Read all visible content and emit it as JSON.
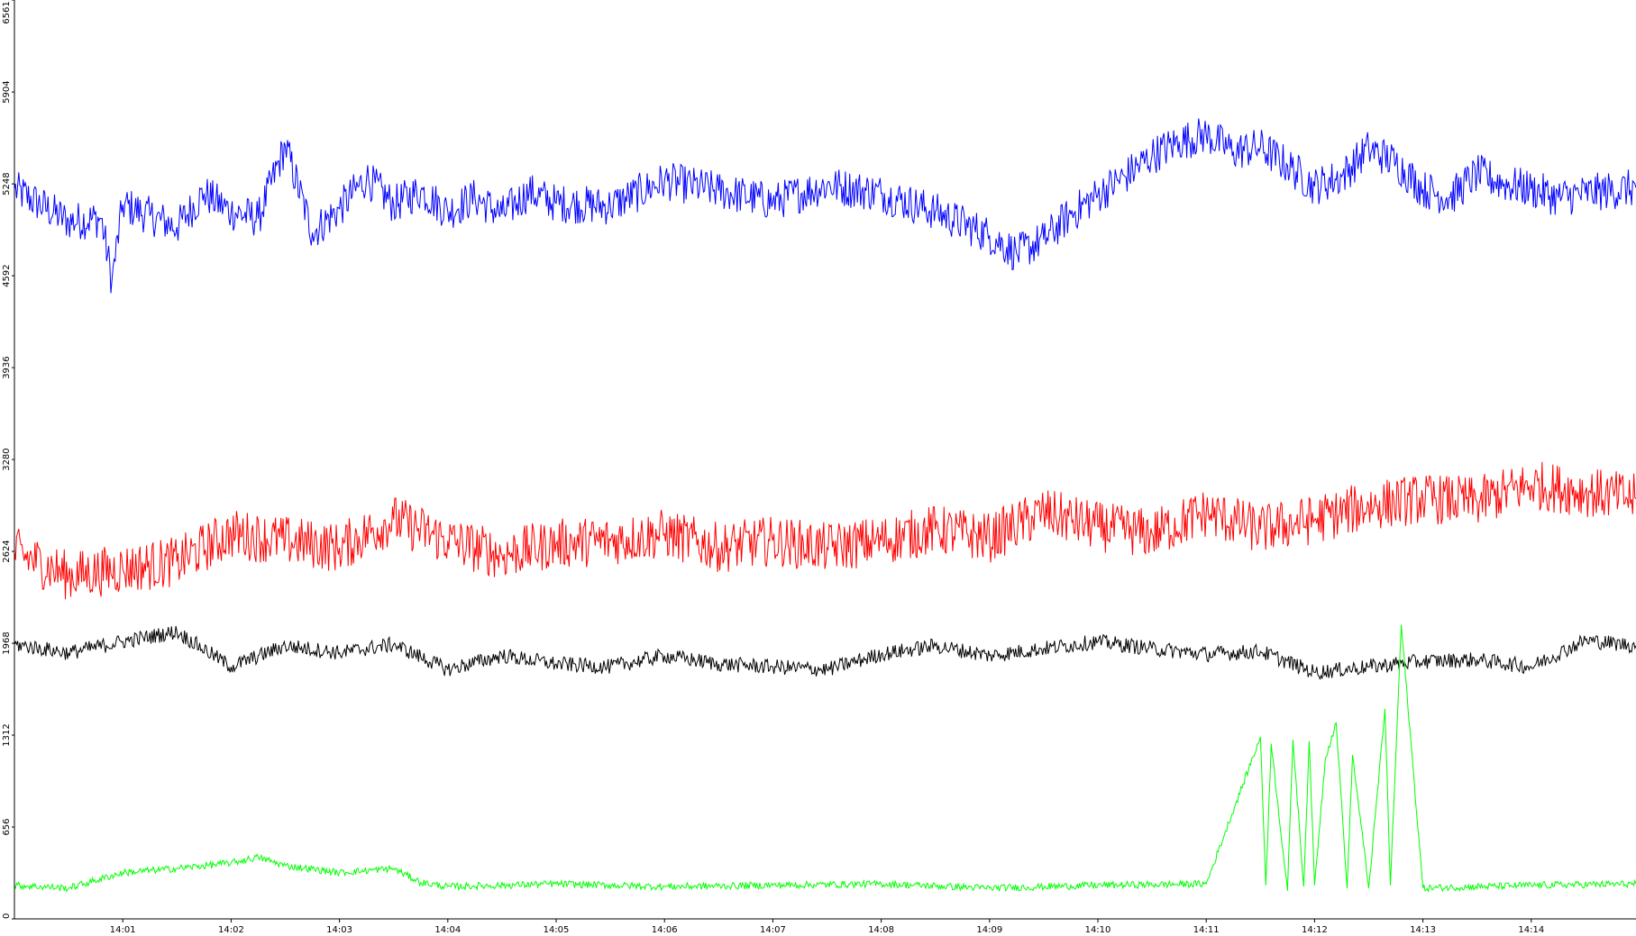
{
  "chart_data": {
    "type": "line",
    "title": "",
    "xlabel": "",
    "ylabel": "",
    "grid": false,
    "legend": "none",
    "x_range": [
      "14:00:00",
      "14:14:58"
    ],
    "ylim": [
      0,
      6561
    ],
    "y_ticks": [
      "0",
      "656",
      "1312",
      "1968",
      "2624",
      "3280",
      "3936",
      "4592",
      "5248",
      "5904",
      "6561"
    ],
    "x_ticks": [
      "14:01",
      "14:02",
      "14:03",
      "14:04",
      "14:05",
      "14:06",
      "14:07",
      "14:08",
      "14:09",
      "14:10",
      "14:11",
      "14:12",
      "14:13",
      "14:14"
    ],
    "series": [
      {
        "color": "#0000ff",
        "x": [
          "14:00:00",
          "14:00:30",
          "14:00:48",
          "14:00:54",
          "14:01:00",
          "14:01:15",
          "14:01:30",
          "14:01:45",
          "14:02:00",
          "14:02:15",
          "14:02:30",
          "14:02:45",
          "14:03:00",
          "14:03:15",
          "14:03:30",
          "14:03:45",
          "14:04:00",
          "14:04:15",
          "14:04:30",
          "14:04:45",
          "14:05:00",
          "14:05:30",
          "14:06:00",
          "14:06:30",
          "14:07:00",
          "14:07:30",
          "14:08:00",
          "14:08:30",
          "14:09:00",
          "14:09:15",
          "14:09:30",
          "14:09:45",
          "14:10:00",
          "14:10:15",
          "14:10:30",
          "14:10:45",
          "14:11:00",
          "14:11:15",
          "14:11:30",
          "14:11:45",
          "14:12:00",
          "14:12:15",
          "14:12:30",
          "14:12:45",
          "14:13:00",
          "14:13:15",
          "14:13:30",
          "14:13:45",
          "14:14:00",
          "14:14:15",
          "14:14:30",
          "14:14:58"
        ],
        "values": [
          5210,
          4980,
          5000,
          4560,
          5100,
          5020,
          4940,
          5180,
          5050,
          5000,
          5520,
          4900,
          5070,
          5290,
          5100,
          5200,
          5050,
          5150,
          5030,
          5190,
          5110,
          5090,
          5270,
          5200,
          5120,
          5240,
          5180,
          5050,
          4880,
          4750,
          4850,
          5030,
          5170,
          5300,
          5450,
          5550,
          5600,
          5480,
          5510,
          5380,
          5230,
          5300,
          5500,
          5400,
          5210,
          5150,
          5320,
          5250,
          5210,
          5150,
          5180,
          5220
        ]
      },
      {
        "color": "#ff0000",
        "x": [
          "14:00:00",
          "14:00:30",
          "14:01:00",
          "14:01:30",
          "14:02:00",
          "14:02:30",
          "14:03:00",
          "14:03:30",
          "14:04:00",
          "14:04:30",
          "14:05:00",
          "14:05:30",
          "14:06:00",
          "14:06:30",
          "14:07:00",
          "14:07:30",
          "14:08:00",
          "14:08:30",
          "14:09:00",
          "14:09:30",
          "14:10:00",
          "14:10:30",
          "14:11:00",
          "14:11:30",
          "14:12:00",
          "14:12:30",
          "14:13:00",
          "14:13:30",
          "14:14:00",
          "14:14:30",
          "14:14:58"
        ],
        "values": [
          2620,
          2450,
          2500,
          2550,
          2750,
          2700,
          2650,
          2850,
          2700,
          2600,
          2680,
          2700,
          2750,
          2650,
          2700,
          2650,
          2700,
          2780,
          2720,
          2900,
          2800,
          2750,
          2900,
          2780,
          2850,
          2950,
          3000,
          2980,
          3100,
          3050,
          3000
        ]
      },
      {
        "color": "#000000",
        "x": [
          "14:00:00",
          "14:00:30",
          "14:01:00",
          "14:01:30",
          "14:02:00",
          "14:02:30",
          "14:03:00",
          "14:03:30",
          "14:04:00",
          "14:04:30",
          "14:05:00",
          "14:05:30",
          "14:06:00",
          "14:06:30",
          "14:07:00",
          "14:07:30",
          "14:08:00",
          "14:08:30",
          "14:09:00",
          "14:09:30",
          "14:10:00",
          "14:10:30",
          "14:11:00",
          "14:11:30",
          "14:12:00",
          "14:12:30",
          "14:13:00",
          "14:13:30",
          "14:14:00",
          "14:14:30",
          "14:14:58"
        ],
        "values": [
          1960,
          1900,
          1980,
          2050,
          1800,
          1950,
          1900,
          1960,
          1780,
          1880,
          1820,
          1800,
          1880,
          1820,
          1800,
          1780,
          1890,
          1950,
          1880,
          1930,
          1980,
          1930,
          1890,
          1910,
          1760,
          1800,
          1840,
          1850,
          1800,
          1990,
          1950
        ]
      },
      {
        "color": "#00ff00",
        "x": [
          "14:00:00",
          "14:00:30",
          "14:01:00",
          "14:01:30",
          "14:02:00",
          "14:02:15",
          "14:02:30",
          "14:03:00",
          "14:03:30",
          "14:03:45",
          "14:04:00",
          "14:05:00",
          "14:06:00",
          "14:07:00",
          "14:08:00",
          "14:09:00",
          "14:10:00",
          "14:11:00",
          "14:11:30",
          "14:11:33",
          "14:11:36",
          "14:11:45",
          "14:11:48",
          "14:11:54",
          "14:11:57",
          "14:12:00",
          "14:12:06",
          "14:12:12",
          "14:12:18",
          "14:12:21",
          "14:12:30",
          "14:12:39",
          "14:12:42",
          "14:12:48",
          "14:13:00",
          "14:14:00",
          "14:14:58"
        ],
        "values": [
          240,
          220,
          330,
          360,
          400,
          440,
          380,
          330,
          360,
          260,
          230,
          250,
          230,
          240,
          250,
          220,
          240,
          250,
          1300,
          240,
          1250,
          200,
          1280,
          230,
          1270,
          240,
          1150,
          1400,
          220,
          1170,
          220,
          1500,
          240,
          2100,
          220,
          240,
          250
        ]
      }
    ]
  }
}
